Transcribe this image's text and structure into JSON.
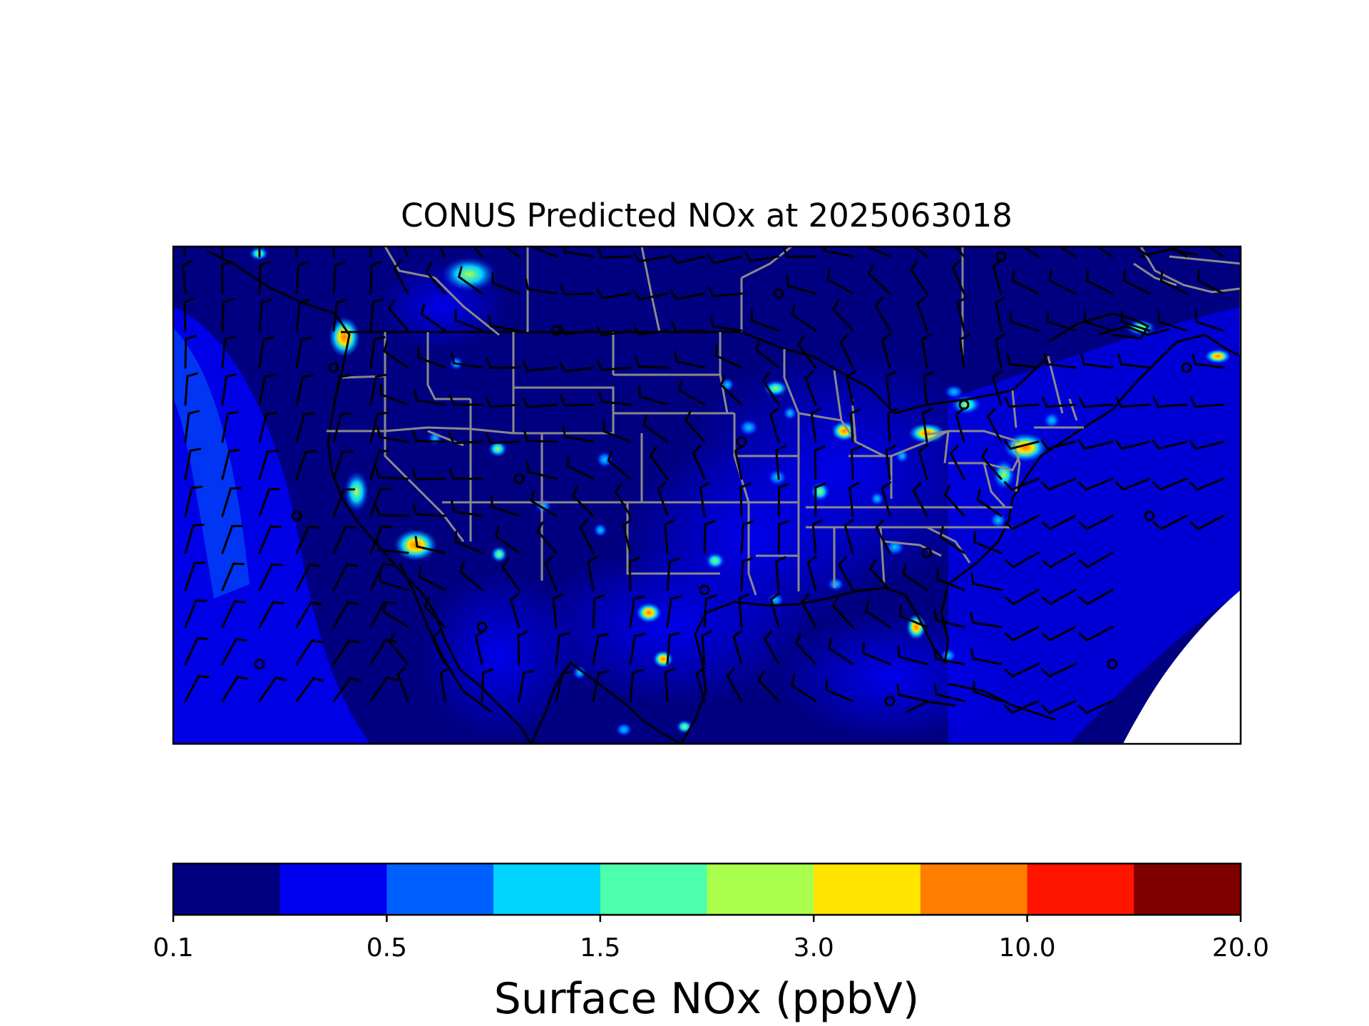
{
  "figure": {
    "title": "CONUS Predicted NOx at 2025063018"
  },
  "map": {
    "region": "CONUS",
    "field": "Surface NOx",
    "overlay": "wind barbs"
  },
  "colorbar": {
    "label": "Surface NOx (ppbV)",
    "levels": [
      0.1,
      0.3,
      0.5,
      1.0,
      1.5,
      2.0,
      3.0,
      5.0,
      10.0,
      15.0,
      20.0
    ],
    "tick_labels": [
      "0.1",
      "0.5",
      "1.5",
      "3.0",
      "10.0",
      "20.0"
    ],
    "tick_levels": [
      0,
      2,
      4,
      6,
      8,
      10
    ],
    "colors": [
      "#000080",
      "#0000f1",
      "#0060ff",
      "#00d4ff",
      "#4cffaa",
      "#aaff4c",
      "#ffe500",
      "#ff7d00",
      "#ff1400",
      "#800000"
    ]
  }
}
